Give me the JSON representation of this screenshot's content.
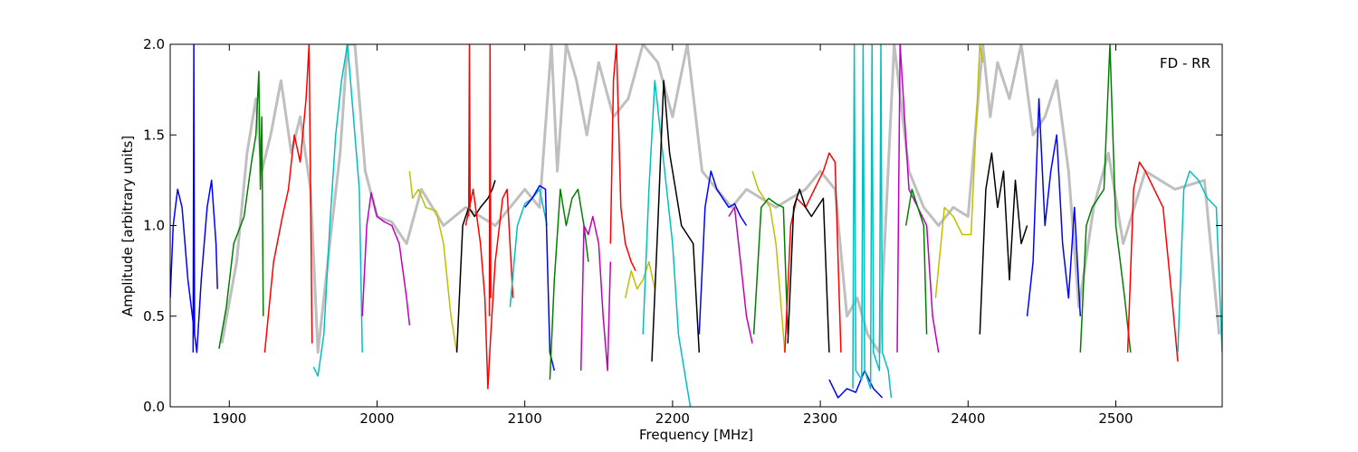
{
  "chart_data": {
    "type": "line",
    "title": "",
    "annotation": "FD - RR",
    "xlabel": "Frequency [MHz]",
    "ylabel": "Amplitude [arbitrary units]",
    "xlim": [
      1860,
      2572
    ],
    "ylim": [
      0.0,
      2.0
    ],
    "grid": false,
    "legend": "none",
    "xticks": [
      {
        "value": 1900,
        "label": "1900"
      },
      {
        "value": 2000,
        "label": "2000"
      },
      {
        "value": 2100,
        "label": "2100"
      },
      {
        "value": 2200,
        "label": "2200"
      },
      {
        "value": 2300,
        "label": "2300"
      },
      {
        "value": 2400,
        "label": "2400"
      },
      {
        "value": 2500,
        "label": "2500"
      }
    ],
    "yticks": [
      {
        "value": 0.0,
        "label": "0.0"
      },
      {
        "value": 0.5,
        "label": "0.5"
      },
      {
        "value": 1.0,
        "label": "1.0"
      },
      {
        "value": 1.5,
        "label": "1.5"
      },
      {
        "value": 2.0,
        "label": "2.0"
      }
    ],
    "background_series": {
      "color": "#bfbfbf",
      "x": [
        1895,
        1905,
        1912,
        1918,
        1922,
        1928,
        1935,
        1942,
        1948,
        1955,
        1960,
        1968,
        1975,
        1980,
        1985,
        1992,
        2000,
        2010,
        2020,
        2030,
        2045,
        2060,
        2080,
        2100,
        2110,
        2118,
        2122,
        2128,
        2135,
        2142,
        2150,
        2160,
        2170,
        2180,
        2190,
        2200,
        2210,
        2220,
        2230,
        2240,
        2250,
        2260,
        2270,
        2280,
        2290,
        2300,
        2310,
        2318,
        2325,
        2332,
        2340,
        2350,
        2360,
        2370,
        2380,
        2390,
        2400,
        2410,
        2415,
        2420,
        2428,
        2436,
        2444,
        2452,
        2460,
        2468,
        2475,
        2485,
        2495,
        2505,
        2520,
        2540,
        2560,
        2570
      ],
      "y": [
        0.35,
        0.8,
        1.4,
        1.7,
        1.3,
        1.5,
        1.8,
        1.4,
        1.6,
        1.2,
        0.3,
        0.9,
        1.4,
        2.0,
        2.0,
        1.3,
        1.05,
        1.02,
        0.9,
        1.2,
        1.0,
        1.1,
        1.0,
        1.2,
        1.1,
        2.0,
        1.3,
        2.0,
        1.8,
        1.5,
        1.9,
        1.6,
        1.7,
        2.0,
        1.9,
        1.6,
        2.0,
        1.3,
        1.2,
        1.1,
        1.2,
        1.15,
        1.1,
        1.15,
        1.2,
        1.3,
        1.2,
        0.5,
        0.6,
        0.4,
        0.3,
        2.0,
        1.3,
        1.1,
        1.0,
        1.1,
        1.05,
        2.0,
        1.6,
        1.9,
        1.7,
        2.0,
        1.5,
        1.6,
        1.8,
        1.3,
        0.55,
        1.1,
        1.4,
        0.9,
        1.3,
        1.2,
        1.25,
        0.4
      ]
    },
    "series": [
      {
        "color": "#0000ff",
        "x": [
          1860,
          1862,
          1865,
          1868,
          1872,
          1875,
          1878,
          1881,
          1885,
          1888,
          1891,
          1892
        ],
        "y": [
          0.6,
          1.0,
          1.2,
          1.1,
          0.7,
          0.5,
          0.3,
          0.7,
          1.1,
          1.25,
          0.9,
          0.65
        ]
      },
      {
        "color": "#0000ff",
        "x": [
          1875.5,
          1876,
          1876.5
        ],
        "y": [
          0.3,
          2.0,
          0.4
        ]
      },
      {
        "color": "#008000",
        "x": [
          1893,
          1898,
          1903,
          1910,
          1915,
          1918,
          1920,
          1921,
          1922,
          1923
        ],
        "y": [
          0.32,
          0.55,
          0.9,
          1.05,
          1.35,
          1.5,
          1.85,
          1.2,
          1.6,
          0.5
        ]
      },
      {
        "color": "#ff0000",
        "x": [
          1924,
          1930,
          1936,
          1940,
          1944,
          1948,
          1952,
          1954,
          1956
        ],
        "y": [
          0.3,
          0.8,
          1.05,
          1.2,
          1.5,
          1.35,
          1.7,
          2.0,
          0.35
        ]
      },
      {
        "color": "#00bfbf",
        "x": [
          1957,
          1960,
          1964,
          1968,
          1972,
          1976,
          1980,
          1984,
          1988,
          1990
        ],
        "y": [
          0.22,
          0.17,
          0.4,
          1.0,
          1.5,
          1.8,
          2.0,
          1.6,
          1.2,
          0.3
        ]
      },
      {
        "color": "#bf00bf",
        "x": [
          1990,
          1993,
          1996,
          2000,
          2005,
          2010,
          2015,
          2020,
          2022
        ],
        "y": [
          0.5,
          1.0,
          1.18,
          1.05,
          1.02,
          1.0,
          0.9,
          0.6,
          0.45
        ]
      },
      {
        "color": "#bfbf00",
        "x": [
          2022,
          2024,
          2028,
          2033,
          2040,
          2045,
          2050,
          2054
        ],
        "y": [
          1.3,
          1.15,
          1.2,
          1.1,
          1.08,
          0.9,
          0.5,
          0.3
        ]
      },
      {
        "color": "#000000",
        "x": [
          2054,
          2058,
          2062,
          2066,
          2070,
          2075,
          2078,
          2080
        ],
        "y": [
          0.3,
          1.0,
          1.1,
          1.05,
          1.1,
          1.15,
          1.2,
          1.25
        ]
      },
      {
        "color": "#ff0000",
        "x": [
          2060,
          2065,
          2070,
          2073,
          2075,
          2077,
          2080,
          2085,
          2088,
          2092
        ],
        "y": [
          1.0,
          1.2,
          0.9,
          0.6,
          0.1,
          0.4,
          0.8,
          1.15,
          1.2,
          0.6
        ]
      },
      {
        "color": "#ff0000",
        "x": [
          2062,
          2062.5,
          2063
        ],
        "y": [
          1.05,
          2.0,
          1.1
        ]
      },
      {
        "color": "#ff0000",
        "x": [
          2076,
          2076.5,
          2077
        ],
        "y": [
          0.5,
          2.0,
          0.6
        ]
      },
      {
        "color": "#00bfbf",
        "x": [
          2090,
          2095,
          2100,
          2105,
          2110,
          2115
        ],
        "y": [
          0.55,
          1.0,
          1.12,
          1.15,
          1.2,
          1.0
        ]
      },
      {
        "color": "#0000ff",
        "x": [
          2100,
          2105,
          2110,
          2114,
          2117,
          2120
        ],
        "y": [
          1.1,
          1.15,
          1.22,
          1.2,
          0.3,
          0.2
        ]
      },
      {
        "color": "#008000",
        "x": [
          2117,
          2120,
          2124,
          2128,
          2132,
          2136,
          2140,
          2143
        ],
        "y": [
          0.15,
          0.7,
          1.2,
          1.0,
          1.15,
          1.2,
          1.0,
          0.8
        ]
      },
      {
        "color": "#bf00bf",
        "x": [
          2138,
          2140,
          2143,
          2146,
          2150,
          2153,
          2156,
          2158
        ],
        "y": [
          0.2,
          1.0,
          0.95,
          1.05,
          0.9,
          0.5,
          0.2,
          0.8
        ]
      },
      {
        "color": "#ff0000",
        "x": [
          2158,
          2160,
          2162,
          2165,
          2168,
          2172,
          2175
        ],
        "y": [
          0.9,
          1.8,
          2.0,
          1.1,
          0.9,
          0.8,
          0.75
        ]
      },
      {
        "color": "#bfbf00",
        "x": [
          2168,
          2172,
          2176,
          2180,
          2184,
          2188
        ],
        "y": [
          0.6,
          0.75,
          0.65,
          0.7,
          0.8,
          0.65
        ]
      },
      {
        "color": "#00bfbf",
        "x": [
          2180,
          2184,
          2188,
          2192,
          2196,
          2200,
          2204,
          2208,
          2212
        ],
        "y": [
          0.4,
          1.2,
          1.8,
          1.5,
          1.2,
          0.9,
          0.4,
          0.2,
          0.0
        ]
      },
      {
        "color": "#000000",
        "x": [
          2186,
          2190,
          2194,
          2198,
          2202,
          2206,
          2210,
          2214,
          2218
        ],
        "y": [
          0.25,
          1.0,
          1.8,
          1.4,
          1.2,
          1.0,
          0.95,
          0.9,
          0.3
        ]
      },
      {
        "color": "#0000ff",
        "x": [
          2218,
          2222,
          2226,
          2230,
          2234,
          2238,
          2242,
          2246,
          2250
        ],
        "y": [
          0.4,
          1.1,
          1.3,
          1.2,
          1.15,
          1.1,
          1.12,
          1.05,
          1.0
        ]
      },
      {
        "color": "#bf00bf",
        "x": [
          2238,
          2242,
          2246,
          2250,
          2254
        ],
        "y": [
          1.05,
          1.1,
          0.8,
          0.5,
          0.35
        ]
      },
      {
        "color": "#bfbf00",
        "x": [
          2254,
          2258,
          2262,
          2266,
          2270,
          2274,
          2276
        ],
        "y": [
          1.3,
          1.2,
          1.15,
          1.1,
          0.9,
          0.5,
          0.3
        ]
      },
      {
        "color": "#008000",
        "x": [
          2255,
          2260,
          2265,
          2270,
          2275,
          2278
        ],
        "y": [
          0.4,
          1.1,
          1.15,
          1.12,
          1.1,
          0.4
        ]
      },
      {
        "color": "#ff0000",
        "x": [
          2276,
          2280,
          2284,
          2290,
          2296,
          2302,
          2306,
          2310,
          2314
        ],
        "y": [
          0.3,
          1.0,
          1.15,
          1.1,
          1.2,
          1.3,
          1.4,
          1.35,
          0.3
        ]
      },
      {
        "color": "#000000",
        "x": [
          2278,
          2282,
          2286,
          2290,
          2294,
          2298,
          2302,
          2306
        ],
        "y": [
          0.35,
          1.1,
          1.2,
          1.1,
          1.05,
          1.1,
          1.15,
          0.3
        ]
      },
      {
        "color": "#0000ff",
        "x": [
          2306,
          2312,
          2318,
          2324,
          2330,
          2336,
          2342
        ],
        "y": [
          0.15,
          0.05,
          0.1,
          0.08,
          0.2,
          0.1,
          0.05
        ]
      },
      {
        "color": "#00bfbf",
        "x": [
          2322,
          2323,
          2324,
          2328,
          2329,
          2330,
          2334,
          2335,
          2336,
          2340,
          2341,
          2342,
          2346,
          2348
        ],
        "y": [
          0.1,
          2.0,
          0.2,
          0.15,
          2.0,
          0.2,
          0.1,
          2.0,
          0.3,
          0.2,
          2.0,
          0.3,
          0.2,
          0.05
        ]
      },
      {
        "color": "#bf00bf",
        "x": [
          2352,
          2354,
          2360,
          2366,
          2372,
          2376,
          2380
        ],
        "y": [
          0.3,
          2.0,
          1.2,
          1.1,
          1.0,
          0.5,
          0.3
        ]
      },
      {
        "color": "#008000",
        "x": [
          2358,
          2362,
          2366,
          2370,
          2372
        ],
        "y": [
          1.0,
          1.2,
          1.1,
          1.0,
          0.4
        ]
      },
      {
        "color": "#bfbf00",
        "x": [
          2378,
          2384,
          2390,
          2396,
          2402,
          2408,
          2410
        ],
        "y": [
          0.6,
          1.1,
          1.05,
          0.95,
          0.95,
          2.0,
          1.9
        ]
      },
      {
        "color": "#000000",
        "x": [
          2408,
          2412,
          2416,
          2420,
          2424,
          2428,
          2432,
          2436,
          2440
        ],
        "y": [
          0.4,
          1.2,
          1.4,
          1.1,
          1.3,
          0.7,
          1.25,
          0.9,
          1.0
        ]
      },
      {
        "color": "#0000ff",
        "x": [
          2440,
          2444,
          2448,
          2452,
          2456,
          2460,
          2464,
          2468,
          2472,
          2476
        ],
        "y": [
          0.5,
          0.8,
          1.7,
          1.0,
          1.3,
          1.5,
          0.9,
          0.6,
          1.1,
          0.5
        ]
      },
      {
        "color": "#008000",
        "x": [
          2476,
          2480,
          2484,
          2488,
          2492,
          2496,
          2500,
          2506,
          2510
        ],
        "y": [
          0.3,
          1.0,
          1.1,
          1.15,
          1.2,
          2.0,
          1.0,
          0.6,
          0.3
        ]
      },
      {
        "color": "#ff0000",
        "x": [
          2508,
          2512,
          2516,
          2520,
          2526,
          2532,
          2538,
          2542
        ],
        "y": [
          0.3,
          1.2,
          1.35,
          1.3,
          1.2,
          1.1,
          0.6,
          0.25
        ]
      },
      {
        "color": "#00bfbf",
        "x": [
          2542,
          2546,
          2550,
          2556,
          2562,
          2568,
          2572
        ],
        "y": [
          0.3,
          1.2,
          1.3,
          1.25,
          1.15,
          1.1,
          0.3
        ]
      }
    ]
  }
}
